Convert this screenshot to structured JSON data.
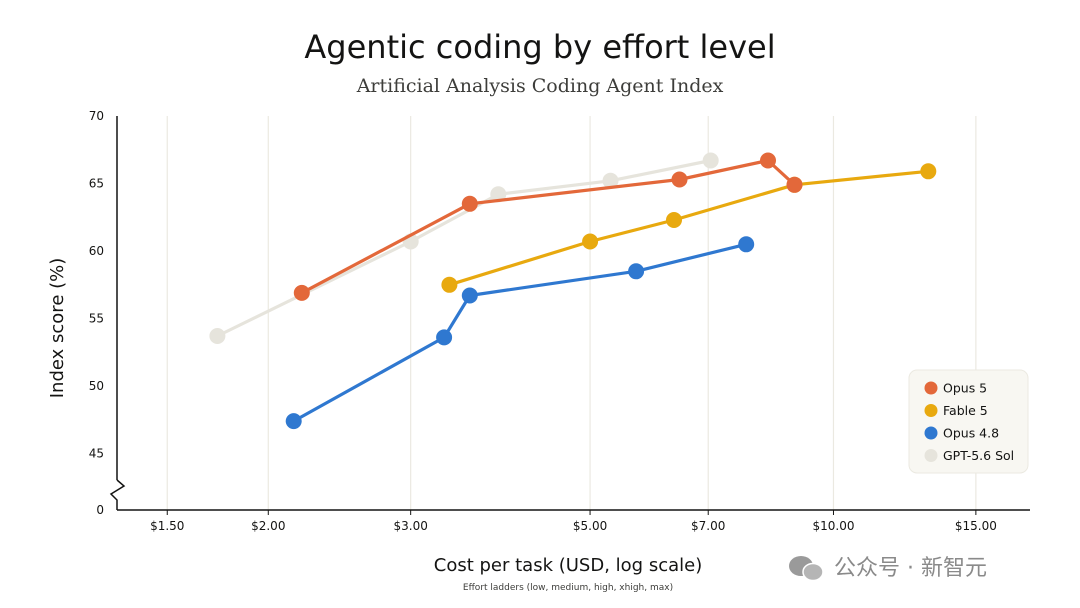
{
  "chart_data": {
    "type": "line",
    "title": "Agentic coding by effort level",
    "subtitle": "Artificial Analysis Coding Agent Index",
    "xlabel": "Cost per task (USD, log scale)",
    "ylabel": "Index score (%)",
    "note": "Effort ladders (low, medium, high, xhigh, max)",
    "x_scale": "log",
    "xlim": [
      1.3,
      17.5
    ],
    "ylim": [
      44,
      70
    ],
    "y_axis_break": true,
    "y_bottom_label": "0",
    "x_ticks": [
      {
        "value": 1.5,
        "label": "$1.50"
      },
      {
        "value": 2.0,
        "label": "$2.00"
      },
      {
        "value": 3.0,
        "label": "$3.00"
      },
      {
        "value": 5.0,
        "label": "$5.00"
      },
      {
        "value": 7.0,
        "label": "$7.00"
      },
      {
        "value": 10.0,
        "label": "$10.00"
      },
      {
        "value": 15.0,
        "label": "$15.00"
      }
    ],
    "y_ticks": [
      {
        "value": 45,
        "label": "45"
      },
      {
        "value": 50,
        "label": "50"
      },
      {
        "value": 55,
        "label": "55"
      },
      {
        "value": 60,
        "label": "60"
      },
      {
        "value": 65,
        "label": "65"
      },
      {
        "value": 70,
        "label": "70"
      }
    ],
    "grid": "vertical",
    "legend_position": "bottom-right",
    "series": [
      {
        "name": "GPT-5.6 Sol",
        "color": "#e6e4dc",
        "x": [
          1.73,
          3.0,
          3.85,
          5.3,
          7.05
        ],
        "y": [
          53.7,
          60.7,
          64.2,
          65.2,
          66.7
        ]
      },
      {
        "name": "Opus 4.8",
        "color": "#2f78d0",
        "x": [
          2.15,
          3.3,
          3.55,
          5.7,
          7.8
        ],
        "y": [
          47.4,
          53.6,
          56.7,
          58.5,
          60.5
        ]
      },
      {
        "name": "Fable 5",
        "color": "#e8a90f",
        "x": [
          3.35,
          5.0,
          6.35,
          8.95,
          13.1
        ],
        "y": [
          57.5,
          60.7,
          62.3,
          64.9,
          65.9
        ]
      },
      {
        "name": "Opus 5",
        "color": "#e3683a",
        "x": [
          2.2,
          3.55,
          6.45,
          8.3,
          8.95
        ],
        "y": [
          56.9,
          63.5,
          65.3,
          66.7,
          64.9
        ]
      }
    ]
  },
  "legend": {
    "items": [
      {
        "label": "Opus 5",
        "color": "#e3683a"
      },
      {
        "label": "Fable 5",
        "color": "#e8a90f"
      },
      {
        "label": "Opus 4.8",
        "color": "#2f78d0"
      },
      {
        "label": "GPT-5.6 Sol",
        "color": "#e6e4dc"
      }
    ]
  },
  "watermark": {
    "text": "公众号 · 新智元"
  },
  "colors": {
    "grid": "#ebe9e1",
    "axis": "#141413",
    "legend_bg": "#f8f7f2",
    "legend_border": "#ebe9e1"
  }
}
